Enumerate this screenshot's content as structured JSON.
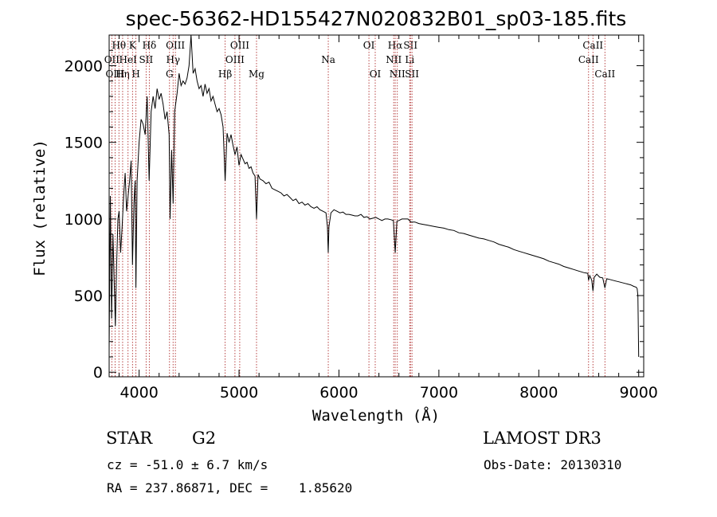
{
  "chart_data": {
    "type": "line",
    "title": "spec-56362-HD155427N020832B01_sp03-185.fits",
    "xlabel": "Wavelength (Å)",
    "ylabel": "Flux (relative)",
    "xlim": [
      3700,
      9050
    ],
    "ylim": [
      -30,
      2200
    ],
    "x_ticks": [
      4000,
      5000,
      6000,
      7000,
      8000,
      9000
    ],
    "y_ticks": [
      0,
      500,
      1000,
      1500,
      2000
    ],
    "lines": [
      {
        "label": "Hθ",
        "wl": 3798,
        "row": 0
      },
      {
        "label": "OII",
        "wl": 3727,
        "row": 1
      },
      {
        "label": "OIII",
        "wl": 3760,
        "row": 2
      },
      {
        "label": "Hη",
        "wl": 3835,
        "row": 2
      },
      {
        "label": "HeI",
        "wl": 3889,
        "row": 1
      },
      {
        "label": "K",
        "wl": 3934,
        "row": 0
      },
      {
        "label": "SII",
        "wl": 4070,
        "row": 1
      },
      {
        "label": "H",
        "wl": 3968,
        "row": 2
      },
      {
        "label": "Hδ",
        "wl": 4102,
        "row": 0
      },
      {
        "label": "OIII",
        "wl": 4363,
        "row": 0
      },
      {
        "label": "Hγ",
        "wl": 4340,
        "row": 1
      },
      {
        "label": "G",
        "wl": 4304,
        "row": 2
      },
      {
        "label": "Hβ",
        "wl": 4861,
        "row": 2
      },
      {
        "label": "OIII",
        "wl": 5007,
        "row": 0
      },
      {
        "label": "OIII",
        "wl": 4959,
        "row": 1
      },
      {
        "label": "Mg",
        "wl": 5175,
        "row": 2
      },
      {
        "label": "Na",
        "wl": 5893,
        "row": 1
      },
      {
        "label": "OI",
        "wl": 6300,
        "row": 0
      },
      {
        "label": "OI",
        "wl": 6363,
        "row": 2
      },
      {
        "label": "Hα",
        "wl": 6563,
        "row": 0
      },
      {
        "label": "SII",
        "wl": 6716,
        "row": 0
      },
      {
        "label": "NII",
        "wl": 6548,
        "row": 1
      },
      {
        "label": "Li",
        "wl": 6708,
        "row": 1
      },
      {
        "label": "NII",
        "wl": 6584,
        "row": 2
      },
      {
        "label": "SII",
        "wl": 6731,
        "row": 2
      },
      {
        "label": "CaII",
        "wl": 8542,
        "row": 0
      },
      {
        "label": "CaII",
        "wl": 8498,
        "row": 1
      },
      {
        "label": "CaII",
        "wl": 8662,
        "row": 2
      }
    ],
    "series": [
      {
        "name": "spectrum",
        "x": [
          3700,
          3712,
          3725,
          3738,
          3750,
          3762,
          3775,
          3788,
          3800,
          3815,
          3830,
          3845,
          3860,
          3875,
          3890,
          3905,
          3920,
          3934,
          3948,
          3960,
          3968,
          3980,
          4000,
          4020,
          4040,
          4060,
          4080,
          4100,
          4120,
          4140,
          4160,
          4180,
          4200,
          4220,
          4240,
          4260,
          4280,
          4300,
          4310,
          4325,
          4340,
          4355,
          4380,
          4400,
          4420,
          4440,
          4460,
          4480,
          4500,
          4520,
          4540,
          4560,
          4580,
          4600,
          4620,
          4640,
          4660,
          4680,
          4700,
          4720,
          4740,
          4760,
          4780,
          4800,
          4820,
          4840,
          4861,
          4880,
          4900,
          4920,
          4940,
          4960,
          4980,
          5000,
          5020,
          5040,
          5060,
          5080,
          5100,
          5120,
          5140,
          5160,
          5175,
          5190,
          5210,
          5240,
          5270,
          5300,
          5330,
          5360,
          5390,
          5420,
          5450,
          5480,
          5510,
          5540,
          5570,
          5600,
          5630,
          5660,
          5690,
          5720,
          5750,
          5780,
          5810,
          5840,
          5870,
          5885,
          5893,
          5900,
          5920,
          5950,
          5980,
          6010,
          6040,
          6070,
          6100,
          6130,
          6160,
          6190,
          6220,
          6250,
          6280,
          6310,
          6340,
          6370,
          6400,
          6430,
          6460,
          6490,
          6520,
          6545,
          6563,
          6580,
          6600,
          6630,
          6660,
          6690,
          6720,
          6760,
          6800,
          6840,
          6880,
          6920,
          6960,
          7000,
          7050,
          7100,
          7150,
          7200,
          7250,
          7300,
          7350,
          7400,
          7450,
          7500,
          7550,
          7600,
          7650,
          7700,
          7750,
          7800,
          7850,
          7900,
          7950,
          8000,
          8050,
          8100,
          8150,
          8200,
          8250,
          8300,
          8350,
          8400,
          8450,
          8490,
          8498,
          8510,
          8530,
          8542,
          8555,
          8580,
          8610,
          8640,
          8662,
          8680,
          8710,
          8740,
          8770,
          8800,
          8830,
          8860,
          8890,
          8920,
          8950,
          8975,
          8985,
          8992,
          9000
        ],
        "y": [
          150,
          1150,
          350,
          900,
          600,
          300,
          700,
          1000,
          1050,
          780,
          950,
          1150,
          1300,
          1050,
          1150,
          1250,
          1380,
          700,
          1100,
          1250,
          550,
          1250,
          1500,
          1650,
          1620,
          1550,
          1800,
          1250,
          1700,
          1800,
          1720,
          1850,
          1780,
          1820,
          1750,
          1650,
          1700,
          1550,
          1000,
          1450,
          1100,
          1700,
          1820,
          1950,
          1870,
          1900,
          1880,
          1920,
          2000,
          2250,
          1950,
          1980,
          1900,
          1850,
          1870,
          1800,
          1880,
          1820,
          1850,
          1770,
          1800,
          1750,
          1700,
          1720,
          1680,
          1600,
          1250,
          1560,
          1500,
          1550,
          1480,
          1420,
          1470,
          1350,
          1420,
          1390,
          1360,
          1370,
          1330,
          1340,
          1300,
          1280,
          1000,
          1290,
          1260,
          1250,
          1230,
          1240,
          1200,
          1190,
          1180,
          1170,
          1150,
          1160,
          1140,
          1120,
          1130,
          1100,
          1110,
          1090,
          1100,
          1080,
          1070,
          1080,
          1060,
          1050,
          1040,
          950,
          780,
          950,
          1040,
          1060,
          1050,
          1040,
          1045,
          1030,
          1030,
          1025,
          1020,
          1020,
          1030,
          1010,
          1015,
          1000,
          1005,
          1010,
          1000,
          990,
          1000,
          1000,
          995,
          990,
          780,
          985,
          990,
          1000,
          1000,
          1000,
          980,
          980,
          970,
          965,
          960,
          955,
          950,
          945,
          940,
          930,
          925,
          910,
          905,
          895,
          885,
          875,
          870,
          860,
          850,
          835,
          825,
          815,
          800,
          790,
          780,
          770,
          760,
          750,
          740,
          725,
          715,
          705,
          690,
          680,
          670,
          660,
          650,
          645,
          600,
          630,
          600,
          530,
          620,
          640,
          620,
          615,
          550,
          610,
          605,
          600,
          595,
          590,
          585,
          580,
          575,
          570,
          560,
          555,
          545,
          500,
          100
        ]
      }
    ]
  },
  "info": {
    "type_label": "STAR",
    "subclass": "G2",
    "cz": "cz = -51.0 ± 6.7 km/s",
    "coords": "RA = 237.86871, DEC =    1.85620",
    "survey": "LAMOST DR3",
    "obs_date": "Obs-Date: 20130310"
  }
}
